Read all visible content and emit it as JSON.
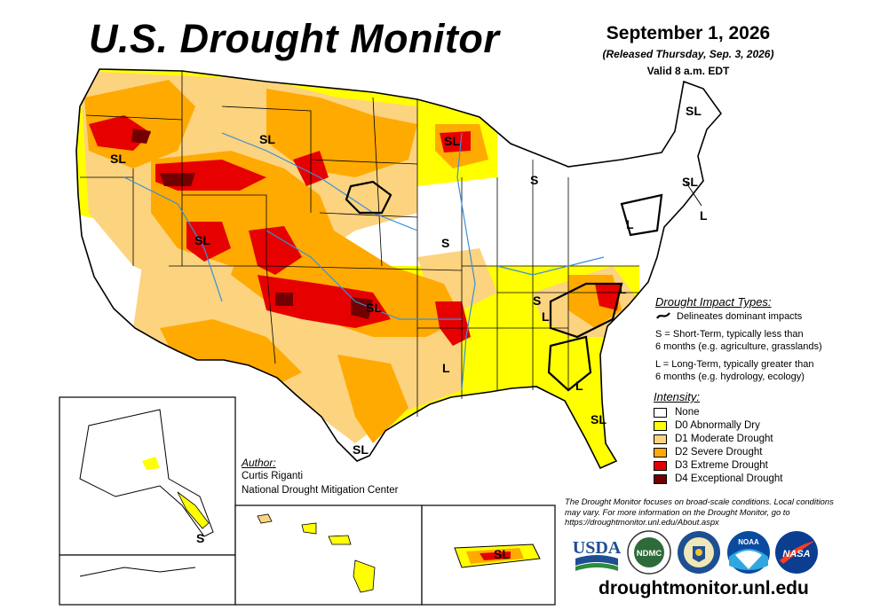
{
  "header": {
    "title": "U.S. Drought Monitor",
    "date": "September 1, 2026",
    "released": "(Released Thursday, Sep. 3, 2026)",
    "valid": "Valid 8 a.m. EDT"
  },
  "impact_types": {
    "title": "Drought Impact Types:",
    "delineates": "Delineates dominant impacts",
    "short_term_line1": "S = Short-Term, typically less than",
    "short_term_line2": "6 months (e.g. agriculture, grasslands)",
    "long_term_line1": "L = Long-Term, typically greater than",
    "long_term_line2": "6 months (e.g. hydrology, ecology)"
  },
  "intensity": {
    "title": "Intensity:",
    "levels": [
      {
        "label": "None",
        "color": "#ffffff"
      },
      {
        "label": "D0 Abnormally Dry",
        "color": "#ffff00"
      },
      {
        "label": "D1 Moderate Drought",
        "color": "#fcd37f"
      },
      {
        "label": "D2 Severe Drought",
        "color": "#ffaa00"
      },
      {
        "label": "D3 Extreme Drought",
        "color": "#e60000"
      },
      {
        "label": "D4 Exceptional Drought",
        "color": "#730000"
      }
    ]
  },
  "author": {
    "title": "Author:",
    "name": "Curtis Riganti",
    "org": "National Drought Mitigation Center"
  },
  "note": "The Drought Monitor focuses on broad-scale conditions. Local conditions may vary. For more information on the Drought Monitor, go to https://droughtmonitor.unl.edu/About.aspx",
  "url": "droughtmonitor.unl.edu",
  "logos": {
    "usda": "USDA",
    "ndmc": "NDMC",
    "noaa": "NOAA",
    "nasa": "NASA"
  },
  "map_labels": [
    {
      "text": "SL"
    },
    {
      "text": "SL"
    },
    {
      "text": "SL"
    },
    {
      "text": "SL"
    },
    {
      "text": "SL"
    },
    {
      "text": "SL"
    },
    {
      "text": "SL"
    },
    {
      "text": "SL"
    },
    {
      "text": "SL"
    },
    {
      "text": "S"
    },
    {
      "text": "S"
    },
    {
      "text": "S"
    },
    {
      "text": "S"
    },
    {
      "text": "L"
    },
    {
      "text": "L"
    },
    {
      "text": "L"
    },
    {
      "text": "L"
    },
    {
      "text": "L"
    },
    {
      "text": "L"
    },
    {
      "text": "SL"
    }
  ],
  "colors": {
    "water": "#3a8fd9",
    "border": "#000000"
  }
}
